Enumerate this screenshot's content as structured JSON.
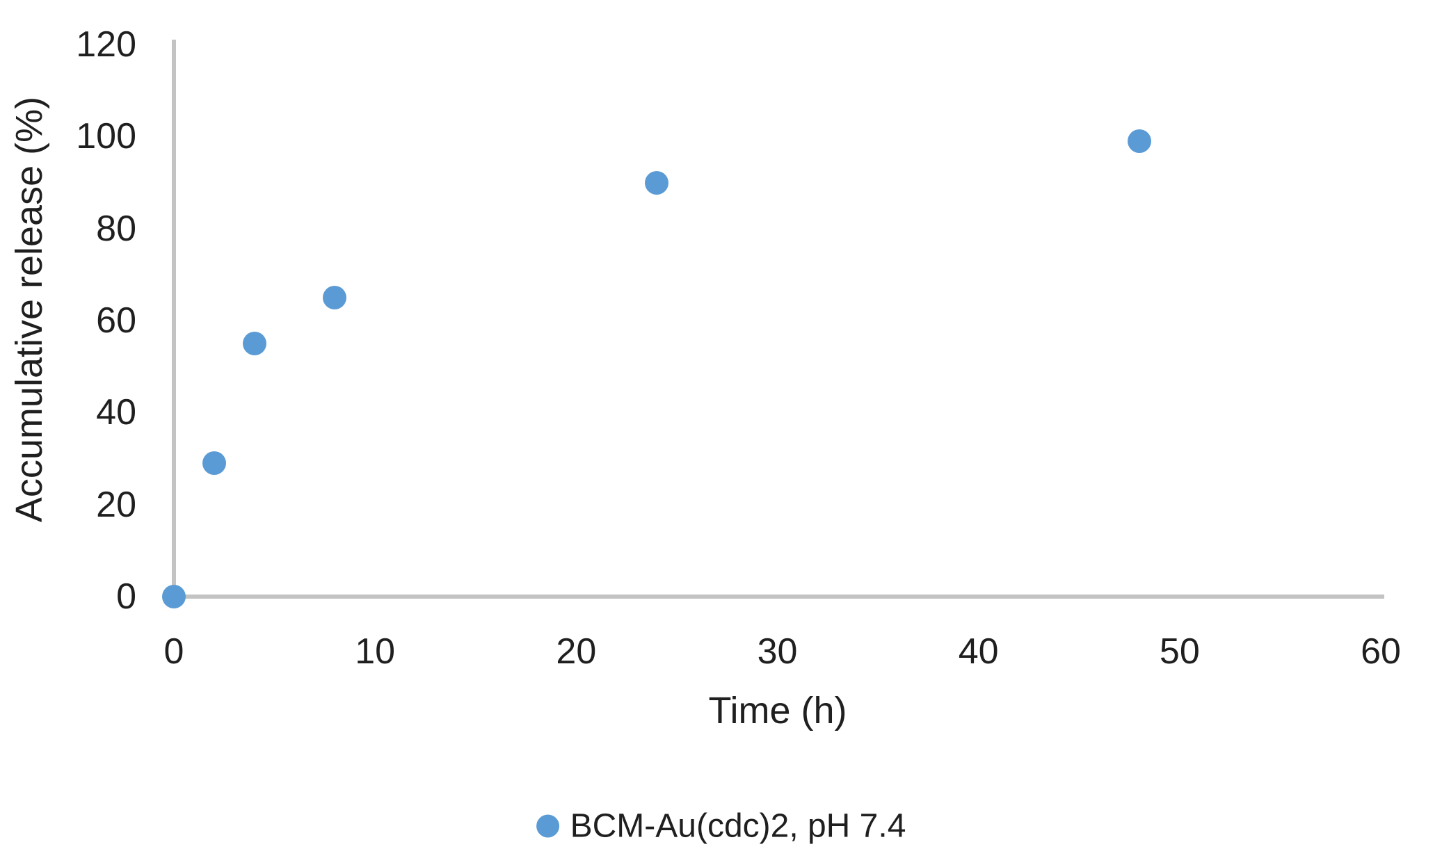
{
  "chart_data": {
    "type": "scatter",
    "title": "",
    "xlabel": "Time (h)",
    "ylabel": "Accumulative release (%)",
    "xlim": [
      0,
      60
    ],
    "ylim": [
      0,
      120
    ],
    "xticks": [
      0,
      10,
      20,
      30,
      40,
      50,
      60
    ],
    "yticks": [
      0,
      20,
      40,
      60,
      80,
      100,
      120
    ],
    "grid": false,
    "legend_position": "bottom-center",
    "series": [
      {
        "name": "BCM-Au(cdc)2, pH 7.4",
        "x": [
          0,
          2,
          4,
          8,
          24,
          48
        ],
        "y": [
          0,
          29,
          55,
          65,
          90,
          99
        ],
        "marker": "circle",
        "marker_color": "#5B9BD5"
      }
    ],
    "axis_line_color": "#C3C3C3",
    "text_color": "#1F1F1F"
  },
  "legend": {
    "label": "BCM-Au(cdc)2, pH 7.4"
  }
}
